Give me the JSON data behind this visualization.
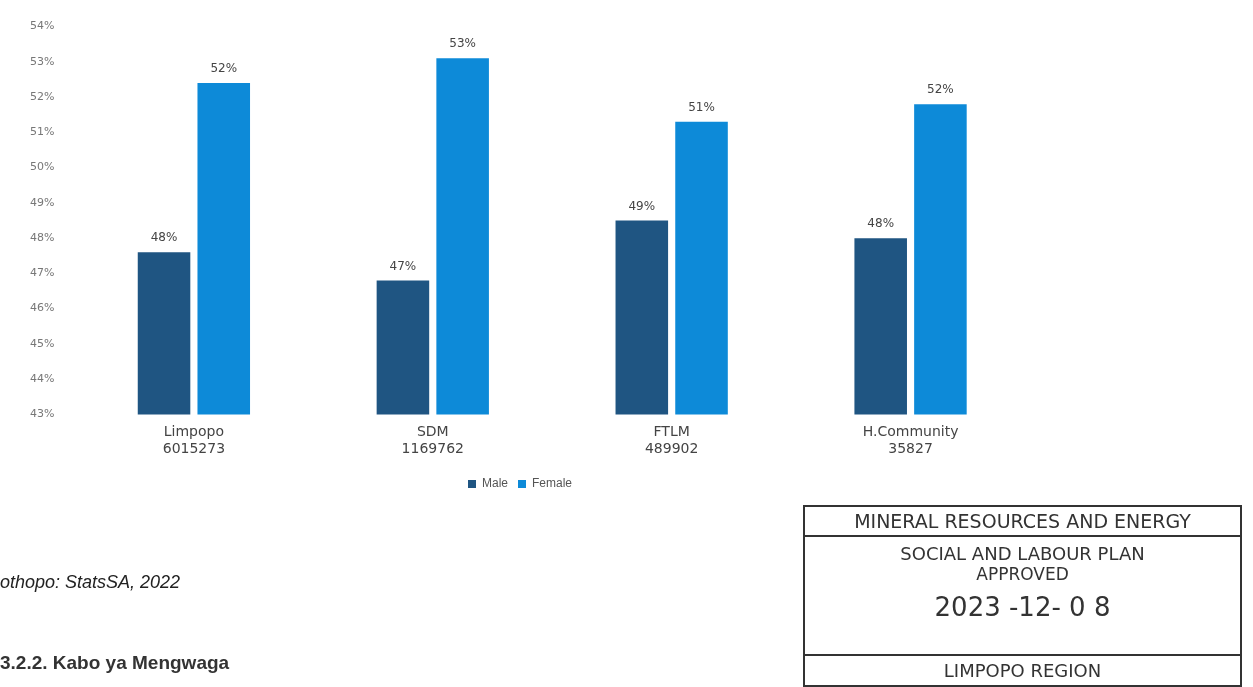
{
  "chart_data": {
    "type": "bar",
    "categories": [
      "Limpopo\n6015273",
      "SDM\n1169762",
      "FTLM\n489902",
      "H.Community\n35827"
    ],
    "series": [
      {
        "name": "Male",
        "color": "#1f5582",
        "values": [
          47.6,
          46.8,
          48.5,
          48.0
        ],
        "value_labels": [
          "48%",
          "47%",
          "49%",
          "48%"
        ]
      },
      {
        "name": "Female",
        "color": "#0d8ad8",
        "values": [
          52.4,
          53.1,
          51.3,
          51.8
        ],
        "value_labels": [
          "52%",
          "53%",
          "51%",
          "52%"
        ]
      }
    ],
    "ylim": [
      43,
      54
    ],
    "yticks": [
      {
        "value": 43,
        "label": "43%"
      },
      {
        "value": 44,
        "label": "44%"
      },
      {
        "value": 45,
        "label": "45%"
      },
      {
        "value": 46,
        "label": "46%"
      },
      {
        "value": 47,
        "label": "47%"
      },
      {
        "value": 48,
        "label": "48%"
      },
      {
        "value": 49,
        "label": "49%"
      },
      {
        "value": 50,
        "label": "50%"
      },
      {
        "value": 51,
        "label": "51%"
      },
      {
        "value": 52,
        "label": "52%"
      },
      {
        "value": 53,
        "label": "53%"
      },
      {
        "value": 54,
        "label": "54%"
      }
    ],
    "grid": false,
    "legend": "bottom",
    "annotations": [
      "othopo: StatsSA, 2022",
      "3.2.2. Kabo ya Mengwaga",
      "MINERAL RESOURCES AND ENERGY",
      "SOCIAL AND LABOUR PLAN",
      "APPROVED",
      "2023 -12- 0 8",
      "LIMPOPO REGION"
    ]
  }
}
